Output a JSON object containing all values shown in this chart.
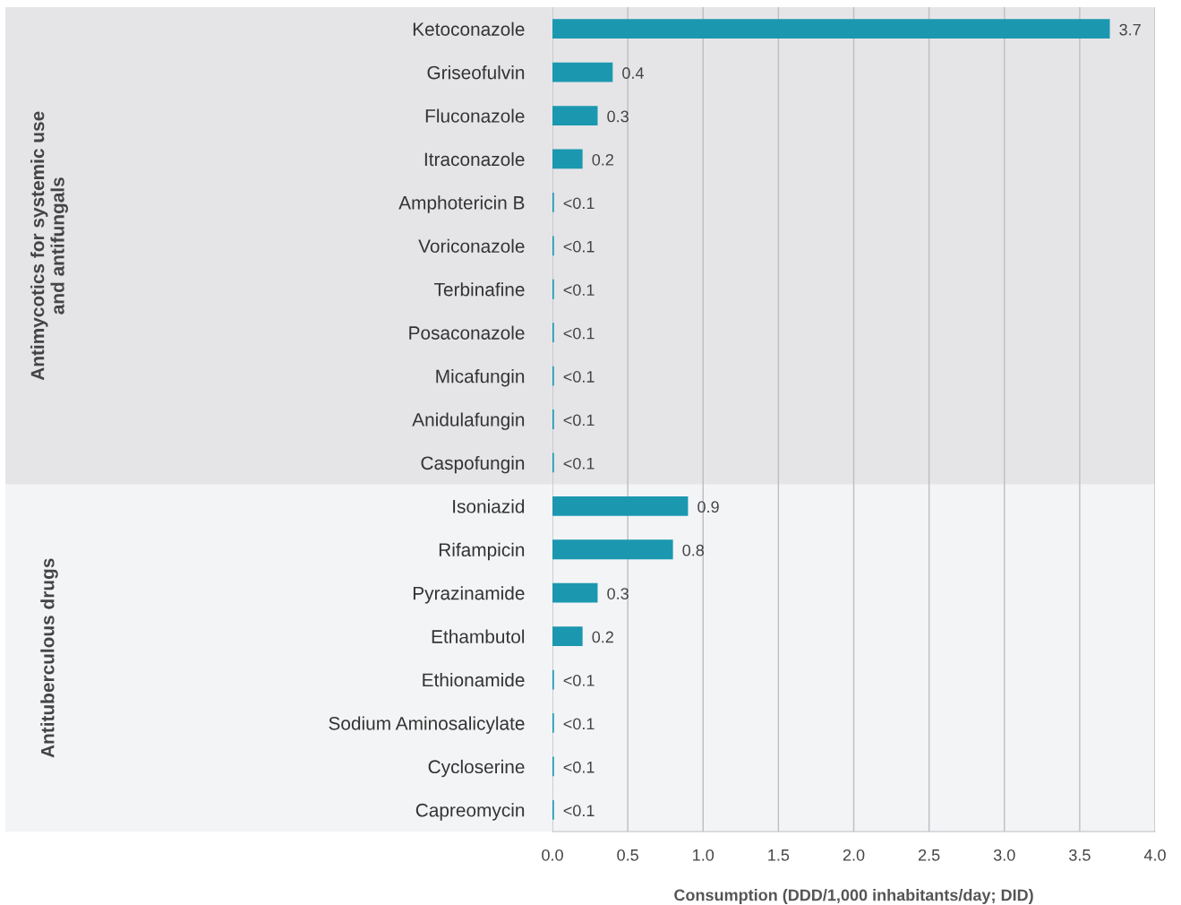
{
  "chart_data": {
    "type": "bar",
    "orientation": "horizontal",
    "categories": [
      "Ketoconazole",
      "Griseofulvin",
      "Fluconazole",
      "Itraconazole",
      "Amphotericin B",
      "Voriconazole",
      "Terbinafine",
      "Posaconazole",
      "Micafungin",
      "Anidulafungin",
      "Caspofungin",
      "Isoniazid",
      "Rifampicin",
      "Pyrazinamide",
      "Ethambutol",
      "Ethionamide",
      "Sodium Aminosalicylate",
      "Cycloserine",
      "Capreomycin"
    ],
    "values": [
      3.7,
      0.4,
      0.3,
      0.2,
      0.01,
      0.01,
      0.01,
      0.01,
      0.01,
      0.01,
      0.01,
      0.9,
      0.8,
      0.3,
      0.2,
      0.01,
      0.01,
      0.01,
      0.01
    ],
    "value_labels": [
      "3.7",
      "0.4",
      "0.3",
      "0.2",
      "<0.1",
      "<0.1",
      "<0.1",
      "<0.1",
      "<0.1",
      "<0.1",
      "<0.1",
      "0.9",
      "0.8",
      "0.3",
      "0.2",
      "<0.1",
      "<0.1",
      "<0.1",
      "<0.1"
    ],
    "color": "#1b98b0",
    "xlabel": "Consumption (DDD/1,000 inhabitants/day; DID)",
    "xlim": [
      0,
      4.0
    ],
    "xticks": [
      {
        "value": 0,
        "label": "0.0"
      },
      {
        "value": 0.5,
        "label": "0.5"
      },
      {
        "value": 1.0,
        "label": "1.0"
      },
      {
        "value": 1.5,
        "label": "1.5"
      },
      {
        "value": 2.0,
        "label": "2.0"
      },
      {
        "value": 2.5,
        "label": "2.5"
      },
      {
        "value": 3.0,
        "label": "3.0"
      },
      {
        "value": 3.5,
        "label": "3.5"
      },
      {
        "value": 4.0,
        "label": "4.0"
      }
    ],
    "grid": "x",
    "bands": [
      {
        "axis": "y",
        "from": "Ketoconazole",
        "to": "Caspofungin",
        "label": "Antimycotics for systemic use\nand antifungals",
        "color": "#e5e5e8"
      },
      {
        "axis": "y",
        "from": "Isoniazid",
        "to": "Capreomycin",
        "label": "Antituberculous drugs",
        "color": "#f3f4f6"
      }
    ]
  }
}
